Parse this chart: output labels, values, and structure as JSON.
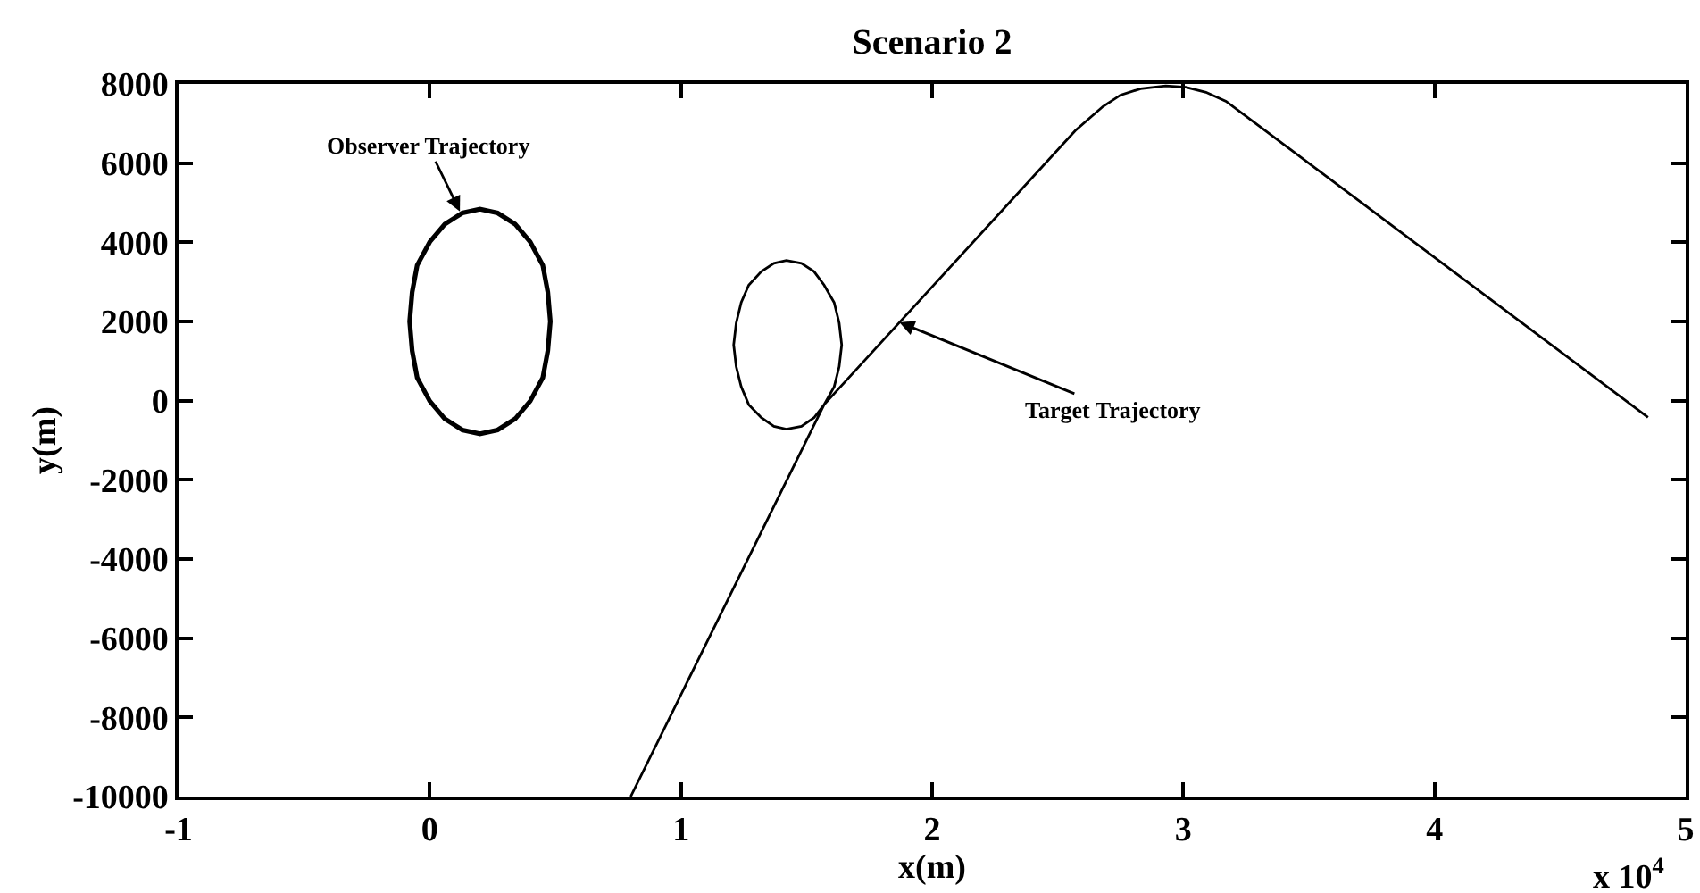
{
  "chart_data": {
    "type": "line",
    "title": "Scenario 2",
    "xlabel": "x(m)",
    "ylabel": "y(m)",
    "xlim": [
      -1,
      5
    ],
    "xticks": [
      -1,
      0,
      1,
      2,
      3,
      4,
      5
    ],
    "ylim": [
      -10000,
      8000
    ],
    "yticks": [
      -10000,
      -8000,
      -6000,
      -4000,
      -2000,
      0,
      2000,
      4000,
      6000,
      8000
    ],
    "grid": false,
    "marker": "none",
    "line_style": "solid",
    "series": [
      {
        "color": "#000000",
        "x": [
          0.48,
          0.47,
          0.45,
          0.4,
          0.34,
          0.27,
          0.2,
          0.13,
          0.06,
          0.0,
          -0.05,
          -0.07,
          -0.08,
          -0.07,
          -0.05,
          0.0,
          0.06,
          0.13,
          0.2,
          0.27,
          0.34,
          0.4,
          0.45,
          0.47,
          0.48,
          0.47
        ],
        "values": [
          2000,
          2740,
          3420,
          4010,
          4460,
          4740,
          4840,
          4740,
          4460,
          4010,
          3420,
          2740,
          2000,
          1260,
          580,
          -10,
          -460,
          -740,
          -840,
          -740,
          -460,
          -10,
          580,
          1260,
          2000,
          2740
        ]
      },
      {
        "color": "#000000",
        "x": [
          0.8,
          1.57,
          1.61,
          1.63,
          1.64,
          1.63,
          1.61,
          1.57,
          1.53,
          1.48,
          1.42,
          1.37,
          1.32,
          1.27,
          1.24,
          1.22,
          1.21,
          1.22,
          1.24,
          1.27,
          1.32,
          1.37,
          1.42,
          1.48,
          1.53,
          1.57,
          2.57,
          2.68,
          2.75,
          2.83,
          2.93,
          3.01,
          3.09,
          3.17,
          3.24,
          4.85
        ],
        "values": [
          -10000,
          -100,
          350,
          860,
          1410,
          1960,
          2480,
          2920,
          3260,
          3470,
          3540,
          3470,
          3260,
          2920,
          2480,
          1960,
          1410,
          860,
          350,
          -100,
          -430,
          -650,
          -720,
          -650,
          -430,
          -100,
          6820,
          7430,
          7720,
          7880,
          7950,
          7920,
          7790,
          7560,
          7230,
          -420
        ]
      }
    ],
    "annotations": [
      {
        "text": "Observer Trajectory",
        "x": 0.12,
        "y": 4780
      },
      {
        "text": "Target Trajectory",
        "x": 1.87,
        "y": 1980
      },
      "x 10$^{4}$"
    ]
  }
}
